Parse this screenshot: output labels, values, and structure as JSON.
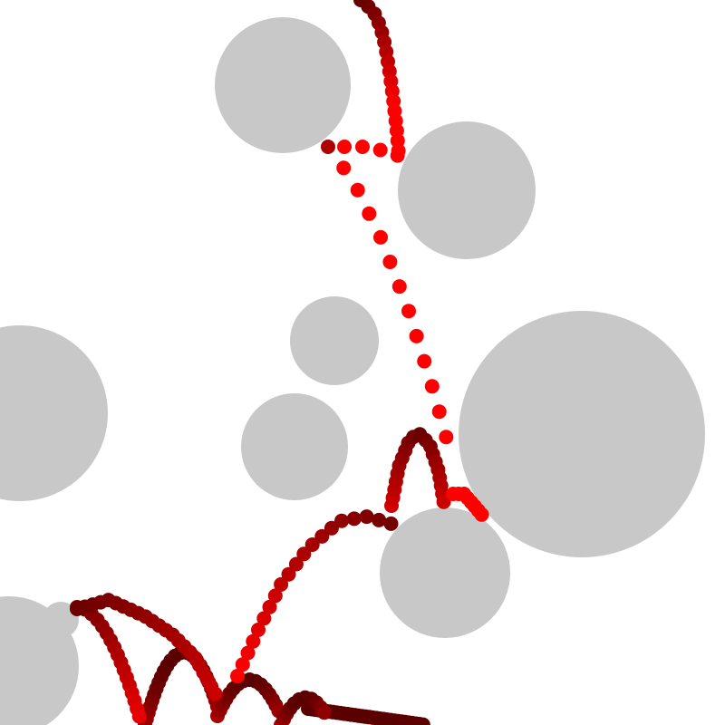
{
  "colors": {
    "background": "#ffffff",
    "obstacle": "#c8c8c8",
    "trail_bright": "#ff0000",
    "trail_dark": "#5a0000"
  }
}
